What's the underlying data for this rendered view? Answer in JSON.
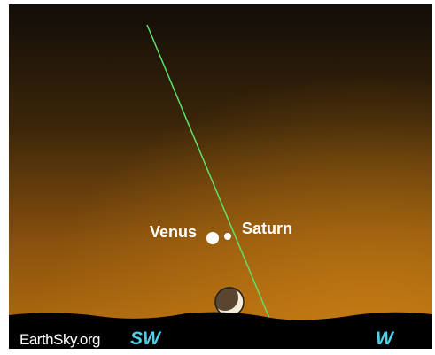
{
  "planets": [
    {
      "label": "Venus"
    },
    {
      "label": "Saturn"
    }
  ],
  "footer": {
    "credit": "EarthSky.org",
    "directions": [
      "SW",
      "W"
    ]
  }
}
